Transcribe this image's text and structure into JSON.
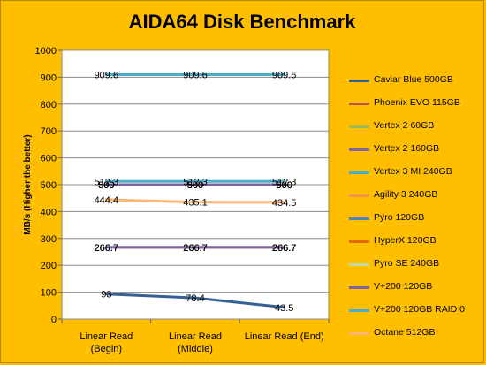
{
  "chart_data": {
    "type": "line",
    "title": "AIDA64 Disk Benchmark",
    "ylabel": "MB/s (Higher the better)",
    "xlabel": "",
    "ylim": [
      0,
      1000
    ],
    "yticks": [
      0,
      100,
      200,
      300,
      400,
      500,
      600,
      700,
      800,
      900,
      1000
    ],
    "categories": [
      [
        "Linear Read",
        "(Begin)"
      ],
      [
        "Linear Read",
        "(Middle)"
      ],
      [
        "Linear Read (End)"
      ]
    ],
    "grid": true,
    "legend_position": "right",
    "series": [
      {
        "name": "Caviar Blue 500GB",
        "color": "#376092",
        "values": [
          93,
          78.4,
          43.5
        ],
        "labels": [
          "93",
          "78.4",
          "43.5"
        ]
      },
      {
        "name": "Phoenix EVO 115GB",
        "color": "#c0504d",
        "values": [
          266.7,
          266.7,
          266.7
        ],
        "labels": [
          "266.7",
          "266.7",
          "266.7"
        ]
      },
      {
        "name": "Vertex 2 60GB",
        "color": "#9bbb59",
        "values": [
          266.7,
          266.7,
          266.7
        ],
        "labels": [
          "266.7",
          "266.7",
          "266.7"
        ]
      },
      {
        "name": "Vertex 2 160GB",
        "color": "#8064a2",
        "values": [
          266.7,
          266.7,
          266.7
        ],
        "labels": [
          "266.7",
          "266.7",
          "266.7"
        ]
      },
      {
        "name": "Vertex 3 MI 240GB",
        "color": "#4bacc6",
        "values": [
          512.3,
          512.3,
          512.3
        ],
        "labels": [
          "512.3",
          "512.3",
          "512.3"
        ]
      },
      {
        "name": "Agility 3 240GB",
        "color": "#f79646",
        "values": [
          500,
          500,
          500
        ],
        "labels": [
          "500",
          "500",
          "500"
        ]
      },
      {
        "name": "Pyro 120GB",
        "color": "#4f81bd",
        "values": [
          500,
          500,
          500
        ],
        "labels": [
          "500",
          "500",
          "500"
        ]
      },
      {
        "name": "HyperX 120GB",
        "color": "#e36c09",
        "values": [
          500,
          500,
          500
        ],
        "labels": [
          "500",
          "500",
          "500"
        ]
      },
      {
        "name": "Pyro SE 240GB",
        "color": "#c3d69b",
        "values": [
          500,
          500,
          500
        ],
        "labels": [
          "500",
          "500",
          "500"
        ]
      },
      {
        "name": "V+200 120GB",
        "color": "#8064a2",
        "values": [
          500,
          500,
          500
        ],
        "labels": [
          "500",
          "500",
          "500"
        ]
      },
      {
        "name": "V+200 120GB RAID 0",
        "color": "#4bacc6",
        "values": [
          909.6,
          909.6,
          909.6
        ],
        "labels": [
          "909.6",
          "909.6",
          "909.6"
        ]
      },
      {
        "name": "Octane 512GB",
        "color": "#fab672",
        "values": [
          444.4,
          435.1,
          434.5
        ],
        "labels": [
          "444.4",
          "435.1",
          "434.5"
        ]
      }
    ]
  }
}
